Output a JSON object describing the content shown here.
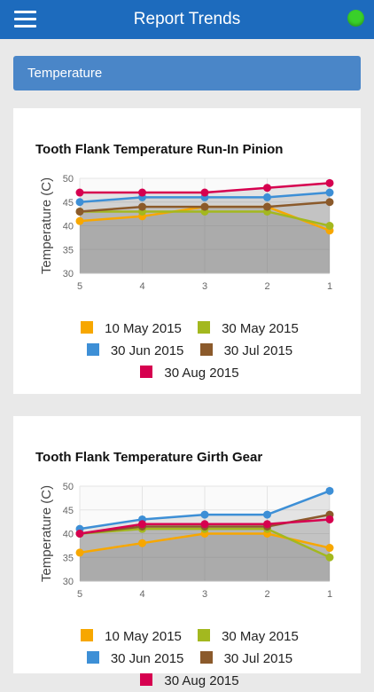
{
  "header": {
    "title": "Report Trends",
    "status_color": "#39d02a"
  },
  "section": {
    "label": "Temperature"
  },
  "legend_colors": [
    "#f7a700",
    "#a3b81f",
    "#3d8fd6",
    "#8b5a2b",
    "#d6004f"
  ],
  "chart_data": [
    {
      "type": "line",
      "title": "Tooth Flank Temperature Run-In Pinion",
      "ylabel": "Temperature (C)",
      "xlabel": "",
      "categories": [
        "5",
        "4",
        "3",
        "2",
        "1"
      ],
      "ylim": [
        30,
        50
      ],
      "yticks": [
        "50",
        "45",
        "40",
        "35",
        "30"
      ],
      "grid": true,
      "legend_position": "bottom",
      "series": [
        {
          "name": "10 May 2015",
          "color": "#f7a700",
          "values": [
            41,
            42,
            44,
            44,
            39
          ]
        },
        {
          "name": "30 May 2015",
          "color": "#a3b81f",
          "values": [
            43,
            43,
            43,
            43,
            40
          ]
        },
        {
          "name": "30 Jun 2015",
          "color": "#3d8fd6",
          "values": [
            45,
            46,
            46,
            46,
            47
          ]
        },
        {
          "name": "30 Jul 2015",
          "color": "#8b5a2b",
          "values": [
            43,
            44,
            44,
            44,
            45
          ]
        },
        {
          "name": "30 Aug 2015",
          "color": "#d6004f",
          "values": [
            47,
            47,
            47,
            48,
            49
          ]
        }
      ]
    },
    {
      "type": "line",
      "title": "Tooth Flank Temperature Girth Gear",
      "ylabel": "Temperature (C)",
      "xlabel": "",
      "categories": [
        "5",
        "4",
        "3",
        "2",
        "1"
      ],
      "ylim": [
        30,
        50
      ],
      "yticks": [
        "50",
        "45",
        "40",
        "35",
        "30"
      ],
      "grid": true,
      "legend_position": "bottom",
      "series": [
        {
          "name": "10 May 2015",
          "color": "#f7a700",
          "values": [
            36,
            38,
            40,
            40,
            37
          ]
        },
        {
          "name": "30 May 2015",
          "color": "#a3b81f",
          "values": [
            40,
            41,
            41,
            41,
            35
          ]
        },
        {
          "name": "30 Jun 2015",
          "color": "#3d8fd6",
          "values": [
            41,
            43,
            44,
            44,
            49
          ]
        },
        {
          "name": "30 Jul 2015",
          "color": "#8b5a2b",
          "values": [
            40,
            41.5,
            41.5,
            41.5,
            44
          ]
        },
        {
          "name": "30 Aug 2015",
          "color": "#d6004f",
          "values": [
            40,
            42,
            42,
            42,
            43
          ]
        }
      ]
    }
  ]
}
